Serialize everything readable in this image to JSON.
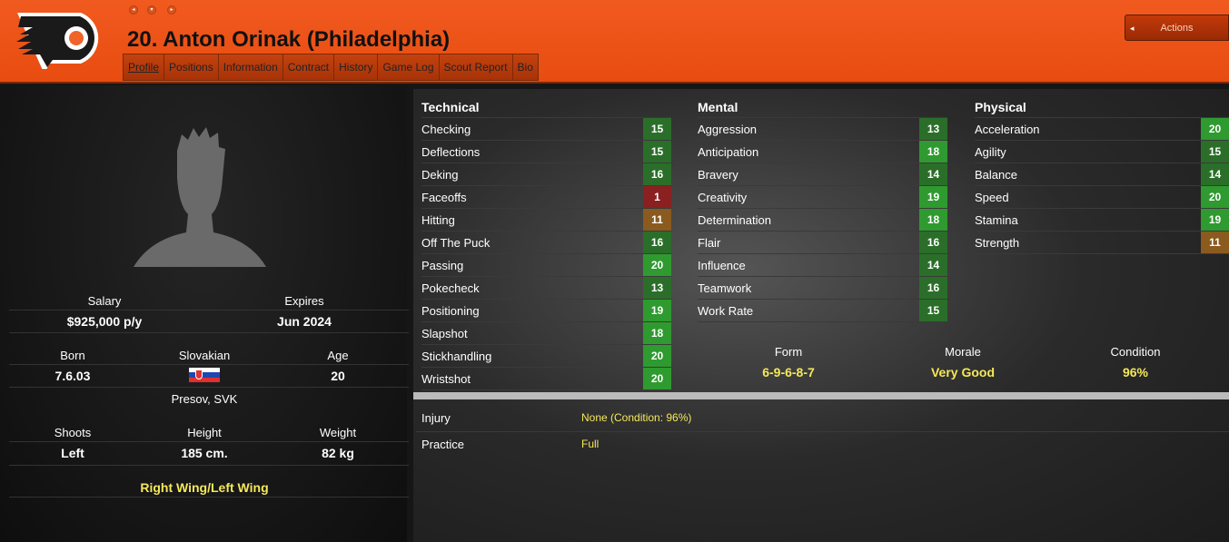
{
  "header": {
    "title": "20. Anton Orinak (Philadelphia)",
    "actions_label": "Actions",
    "tabs": [
      "Profile",
      "Positions",
      "Information",
      "Contract",
      "History",
      "Game Log",
      "Scout Report",
      "Bio"
    ]
  },
  "profile": {
    "salary_label": "Salary",
    "salary": "$925,000 p/y",
    "expires_label": "Expires",
    "expires": "Jun 2024",
    "born_label": "Born",
    "born": "7.6.03",
    "nationality": "Slovakian",
    "age_label": "Age",
    "age": "20",
    "birthplace": "Presov, SVK",
    "shoots_label": "Shoots",
    "shoots": "Left",
    "height_label": "Height",
    "height": "185 cm.",
    "weight_label": "Weight",
    "weight": "82 kg",
    "position": "Right Wing/Left Wing"
  },
  "attributes": {
    "technical": {
      "title": "Technical",
      "items": [
        [
          "Checking",
          15
        ],
        [
          "Deflections",
          15
        ],
        [
          "Deking",
          16
        ],
        [
          "Faceoffs",
          1
        ],
        [
          "Hitting",
          11
        ],
        [
          "Off The Puck",
          16
        ],
        [
          "Passing",
          20
        ],
        [
          "Pokecheck",
          13
        ],
        [
          "Positioning",
          19
        ],
        [
          "Slapshot",
          18
        ],
        [
          "Stickhandling",
          20
        ],
        [
          "Wristshot",
          20
        ]
      ]
    },
    "mental": {
      "title": "Mental",
      "items": [
        [
          "Aggression",
          13
        ],
        [
          "Anticipation",
          18
        ],
        [
          "Bravery",
          14
        ],
        [
          "Creativity",
          19
        ],
        [
          "Determination",
          18
        ],
        [
          "Flair",
          16
        ],
        [
          "Influence",
          14
        ],
        [
          "Teamwork",
          16
        ],
        [
          "Work Rate",
          15
        ]
      ]
    },
    "physical": {
      "title": "Physical",
      "items": [
        [
          "Acceleration",
          20
        ],
        [
          "Agility",
          15
        ],
        [
          "Balance",
          14
        ],
        [
          "Speed",
          20
        ],
        [
          "Stamina",
          19
        ],
        [
          "Strength",
          11
        ]
      ]
    }
  },
  "status": {
    "form_label": "Form",
    "form": "6-9-6-8-7",
    "morale_label": "Morale",
    "morale": "Very Good",
    "condition_label": "Condition",
    "condition": "96%"
  },
  "medical": {
    "injury_label": "Injury",
    "injury": "None (Condition: 96%)",
    "practice_label": "Practice",
    "practice": "Full"
  },
  "colors": {
    "header": "#e8501a",
    "high": "#2f9a2f",
    "mid": "#2a6e2a",
    "amber": "#8a5a1e",
    "low": "#8b2020",
    "highlight": "#f5e85a"
  }
}
